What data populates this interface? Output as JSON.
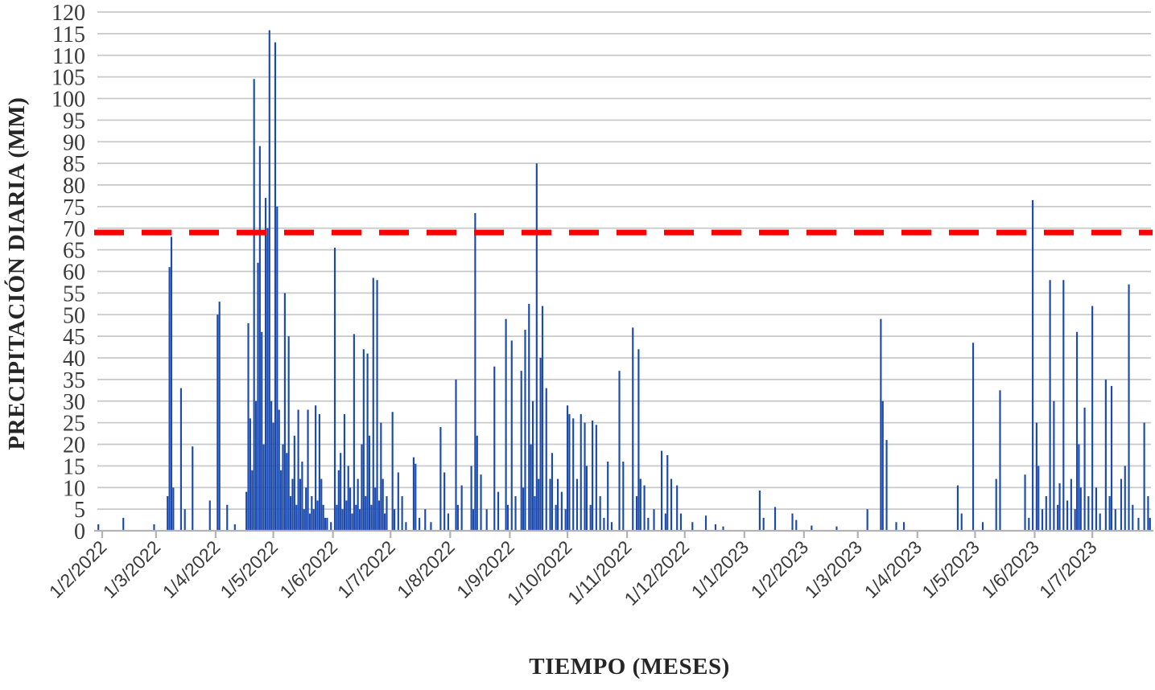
{
  "chart_data": {
    "type": "bar",
    "title": "",
    "xlabel": "TIEMPO (MESES)",
    "ylabel": "PRECIPITACIÓN DIARIA (MM)",
    "ylim": [
      0,
      120
    ],
    "y_tick_step": 5,
    "grid": true,
    "legend": "none",
    "colors": {
      "bar": "#1b4aaf",
      "threshold": "#ff0000",
      "gridline": "#c9c9c9",
      "axis_line": "#b3b3b3",
      "tick_text": "#3a3a3a",
      "background": "#ffffff"
    },
    "threshold_line": {
      "value": 69,
      "style": "dashed",
      "color": "#ff0000"
    },
    "x_axis_unit": "days (bars) with monthly tick labels",
    "total_days": 548,
    "x_ticks": [
      {
        "label": "1/2/2022",
        "day": 2
      },
      {
        "label": "1/3/2022",
        "day": 30
      },
      {
        "label": "1/4/2022",
        "day": 61
      },
      {
        "label": "1/5/2022",
        "day": 91
      },
      {
        "label": "1/6/2022",
        "day": 122
      },
      {
        "label": "1/7/2022",
        "day": 152
      },
      {
        "label": "1/8/2022",
        "day": 183
      },
      {
        "label": "1/9/2022",
        "day": 214
      },
      {
        "label": "1/10/2022",
        "day": 244
      },
      {
        "label": "1/11/2022",
        "day": 275
      },
      {
        "label": "1/12/2022",
        "day": 305
      },
      {
        "label": "1/1/2023",
        "day": 336
      },
      {
        "label": "1/2/2023",
        "day": 367
      },
      {
        "label": "1/3/2023",
        "day": 395
      },
      {
        "label": "1/4/2023",
        "day": 426
      },
      {
        "label": "1/5/2023",
        "day": 456
      },
      {
        "label": "1/6/2023",
        "day": 487
      },
      {
        "label": "1/7/2023",
        "day": 517
      }
    ],
    "series_name": "Precipitación diaria (mm)",
    "daily_precip_mm_sparse_day_value": [
      [
        0,
        1.5
      ],
      [
        13,
        3
      ],
      [
        29,
        1.5
      ],
      [
        36,
        8
      ],
      [
        37,
        61
      ],
      [
        38,
        68
      ],
      [
        39,
        10
      ],
      [
        43,
        33
      ],
      [
        45,
        5
      ],
      [
        49,
        19.5
      ],
      [
        58,
        7
      ],
      [
        62,
        50
      ],
      [
        63,
        53
      ],
      [
        67,
        6
      ],
      [
        71,
        1.5
      ],
      [
        77,
        9
      ],
      [
        78,
        48
      ],
      [
        79,
        26
      ],
      [
        80,
        14
      ],
      [
        81,
        104.5
      ],
      [
        82,
        30
      ],
      [
        83,
        62
      ],
      [
        84,
        89
      ],
      [
        85,
        46
      ],
      [
        86,
        20
      ],
      [
        87,
        77
      ],
      [
        88,
        70
      ],
      [
        89,
        115.8
      ],
      [
        90,
        30
      ],
      [
        91,
        25
      ],
      [
        92,
        113
      ],
      [
        93,
        75
      ],
      [
        94,
        28
      ],
      [
        95,
        14
      ],
      [
        96,
        20
      ],
      [
        97,
        55
      ],
      [
        98,
        18
      ],
      [
        99,
        45
      ],
      [
        100,
        8
      ],
      [
        101,
        12
      ],
      [
        102,
        22
      ],
      [
        103,
        6
      ],
      [
        104,
        28
      ],
      [
        105,
        12
      ],
      [
        106,
        16
      ],
      [
        107,
        5
      ],
      [
        108,
        10
      ],
      [
        109,
        28
      ],
      [
        110,
        4
      ],
      [
        111,
        8
      ],
      [
        112,
        5
      ],
      [
        113,
        29
      ],
      [
        114,
        7
      ],
      [
        115,
        27
      ],
      [
        116,
        12
      ],
      [
        117,
        6
      ],
      [
        118,
        3
      ],
      [
        119,
        3
      ],
      [
        121,
        2
      ],
      [
        123,
        65.5
      ],
      [
        124,
        6
      ],
      [
        125,
        14
      ],
      [
        126,
        18
      ],
      [
        127,
        5
      ],
      [
        128,
        27
      ],
      [
        129,
        7
      ],
      [
        130,
        15
      ],
      [
        131,
        10
      ],
      [
        132,
        4
      ],
      [
        133,
        45.5
      ],
      [
        134,
        6
      ],
      [
        135,
        12
      ],
      [
        136,
        5
      ],
      [
        137,
        20
      ],
      [
        138,
        42
      ],
      [
        139,
        8
      ],
      [
        140,
        41
      ],
      [
        141,
        22
      ],
      [
        142,
        6
      ],
      [
        143,
        58.5
      ],
      [
        144,
        10
      ],
      [
        145,
        58
      ],
      [
        146,
        7
      ],
      [
        147,
        25
      ],
      [
        148,
        12
      ],
      [
        149,
        4
      ],
      [
        150,
        8
      ],
      [
        153,
        27.5
      ],
      [
        154,
        5
      ],
      [
        156,
        13.5
      ],
      [
        158,
        8
      ],
      [
        160,
        2
      ],
      [
        164,
        17
      ],
      [
        165,
        15.5
      ],
      [
        167,
        3
      ],
      [
        170,
        5
      ],
      [
        173,
        2
      ],
      [
        178,
        24
      ],
      [
        180,
        13.5
      ],
      [
        182,
        4
      ],
      [
        186,
        35
      ],
      [
        187,
        6
      ],
      [
        189,
        10.5
      ],
      [
        194,
        15
      ],
      [
        195,
        5
      ],
      [
        196,
        73.5
      ],
      [
        197,
        22
      ],
      [
        199,
        13
      ],
      [
        202,
        5
      ],
      [
        206,
        38
      ],
      [
        208,
        9
      ],
      [
        212,
        49
      ],
      [
        213,
        6
      ],
      [
        215,
        44
      ],
      [
        217,
        8
      ],
      [
        220,
        37
      ],
      [
        221,
        10
      ],
      [
        222,
        46.5
      ],
      [
        224,
        52.5
      ],
      [
        225,
        20
      ],
      [
        226,
        30
      ],
      [
        227,
        8
      ],
      [
        228,
        85
      ],
      [
        229,
        12
      ],
      [
        230,
        40
      ],
      [
        231,
        52
      ],
      [
        233,
        33
      ],
      [
        235,
        12
      ],
      [
        236,
        18
      ],
      [
        238,
        6
      ],
      [
        239,
        12
      ],
      [
        241,
        9
      ],
      [
        243,
        5
      ],
      [
        244,
        29
      ],
      [
        245,
        27
      ],
      [
        247,
        26
      ],
      [
        249,
        12
      ],
      [
        251,
        27
      ],
      [
        253,
        25
      ],
      [
        254,
        15
      ],
      [
        256,
        6
      ],
      [
        257,
        25.5
      ],
      [
        259,
        24.5
      ],
      [
        261,
        8
      ],
      [
        263,
        3
      ],
      [
        265,
        16
      ],
      [
        267,
        2
      ],
      [
        271,
        37
      ],
      [
        273,
        16
      ],
      [
        278,
        47
      ],
      [
        280,
        8
      ],
      [
        281,
        42
      ],
      [
        282,
        12
      ],
      [
        284,
        10.5
      ],
      [
        286,
        3
      ],
      [
        289,
        5
      ],
      [
        293,
        18.5
      ],
      [
        295,
        4
      ],
      [
        296,
        17.5
      ],
      [
        298,
        12
      ],
      [
        301,
        10.5
      ],
      [
        303,
        4
      ],
      [
        309,
        2
      ],
      [
        316,
        3.5
      ],
      [
        321,
        1.5
      ],
      [
        325,
        1
      ],
      [
        344,
        9.3
      ],
      [
        346,
        3
      ],
      [
        352,
        5.5
      ],
      [
        361,
        4
      ],
      [
        363,
        2.5
      ],
      [
        371,
        1.2
      ],
      [
        384,
        1
      ],
      [
        400,
        5
      ],
      [
        407,
        49
      ],
      [
        408,
        30
      ],
      [
        410,
        21
      ],
      [
        415,
        2
      ],
      [
        419,
        2
      ],
      [
        447,
        10.5
      ],
      [
        449,
        4
      ],
      [
        455,
        43.5
      ],
      [
        460,
        2
      ],
      [
        467,
        12
      ],
      [
        469,
        32.5
      ],
      [
        482,
        13
      ],
      [
        484,
        3
      ],
      [
        486,
        76.5
      ],
      [
        488,
        25
      ],
      [
        489,
        15
      ],
      [
        491,
        5
      ],
      [
        493,
        8
      ],
      [
        495,
        58
      ],
      [
        497,
        30
      ],
      [
        499,
        6
      ],
      [
        500,
        11
      ],
      [
        502,
        58
      ],
      [
        504,
        7
      ],
      [
        506,
        12
      ],
      [
        508,
        5
      ],
      [
        509,
        46
      ],
      [
        510,
        20
      ],
      [
        511,
        10
      ],
      [
        513,
        28.5
      ],
      [
        515,
        8
      ],
      [
        517,
        52
      ],
      [
        519,
        10
      ],
      [
        521,
        4
      ],
      [
        524,
        35
      ],
      [
        526,
        8
      ],
      [
        527,
        33.5
      ],
      [
        529,
        5
      ],
      [
        532,
        12
      ],
      [
        534,
        15
      ],
      [
        536,
        57
      ],
      [
        538,
        6
      ],
      [
        541,
        3
      ],
      [
        544,
        25
      ],
      [
        546,
        8
      ],
      [
        547,
        3
      ]
    ]
  }
}
